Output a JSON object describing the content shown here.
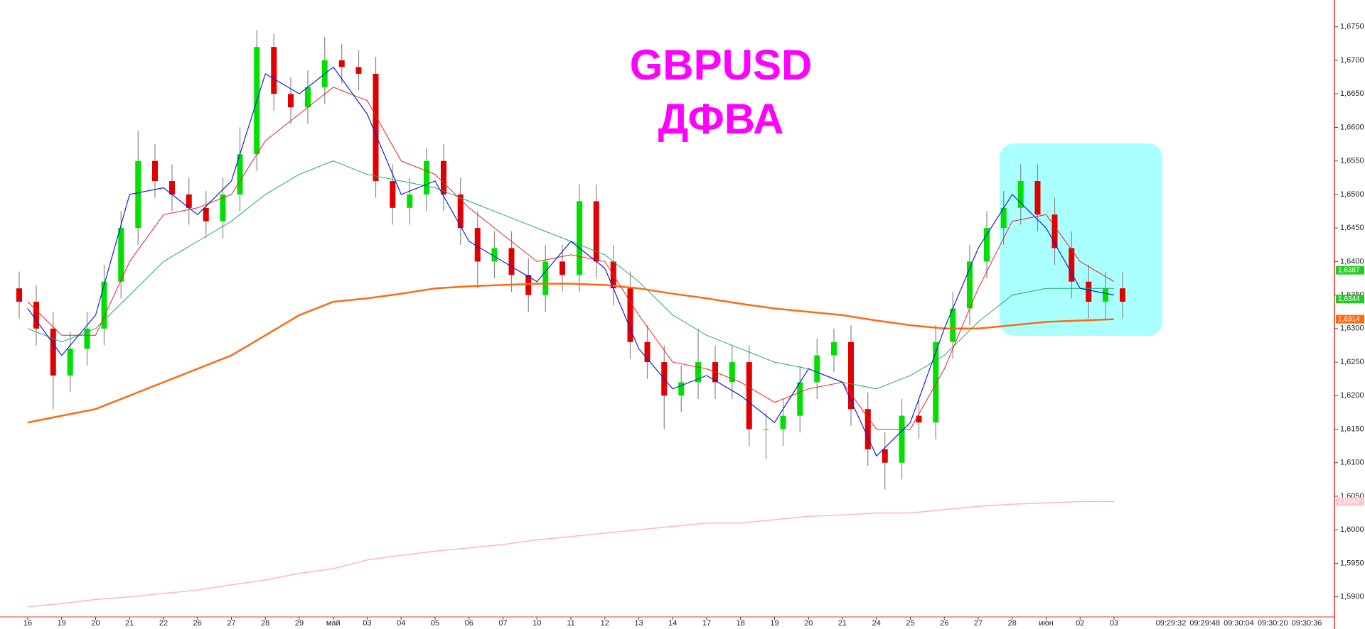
{
  "chart_data": {
    "type": "candlestick",
    "title": "GBPUSD",
    "subtitle": "ДФВА",
    "categories": [
      "16",
      "19",
      "20",
      "21",
      "22",
      "26",
      "27",
      "28",
      "29",
      "май",
      "03",
      "04",
      "05",
      "06",
      "07",
      "10",
      "11",
      "12",
      "13",
      "14",
      "17",
      "18",
      "19",
      "20",
      "21",
      "24",
      "25",
      "26",
      "27",
      "28",
      "июн",
      "02",
      "03"
    ],
    "time_labels": [
      "09:29:32",
      "09:29:48",
      "09:30:04",
      "09:30:20",
      "09:30:36"
    ],
    "open": [
      1.636,
      1.634,
      1.63,
      1.623,
      1.627,
      1.63,
      1.637,
      1.645,
      1.655,
      1.652,
      1.65,
      1.648,
      1.646,
      1.65,
      1.656,
      1.672,
      1.665,
      1.663,
      1.666,
      1.67,
      1.669,
      1.668,
      1.652,
      1.648,
      1.65,
      1.655,
      1.65,
      1.645,
      1.64,
      1.642,
      1.638,
      1.635,
      1.64,
      1.638,
      1.649,
      1.64,
      1.636,
      1.628,
      1.625,
      1.62,
      1.622,
      1.625,
      1.622,
      1.625,
      1.615,
      1.615,
      1.617,
      1.622,
      1.626,
      1.628,
      1.618,
      1.612,
      1.61,
      1.617,
      1.616,
      1.628,
      1.633,
      1.64,
      1.645,
      1.648,
      1.652,
      1.647,
      1.642,
      1.637,
      1.634,
      1.636
    ],
    "high": [
      1.6385,
      1.6365,
      1.6325,
      1.6295,
      1.6325,
      1.6395,
      1.6475,
      1.6595,
      1.6575,
      1.6545,
      1.6525,
      1.6505,
      1.6525,
      1.66,
      1.6745,
      1.674,
      1.6675,
      1.6685,
      1.6735,
      1.6725,
      1.6715,
      1.6705,
      1.6545,
      1.6525,
      1.657,
      1.6575,
      1.6525,
      1.6475,
      1.6445,
      1.6445,
      1.6405,
      1.6425,
      1.6425,
      1.6515,
      1.6515,
      1.6425,
      1.6385,
      1.6305,
      1.6275,
      1.6245,
      1.63,
      1.6275,
      1.6275,
      1.6275,
      1.6175,
      1.6195,
      1.6245,
      1.6285,
      1.63,
      1.6305,
      1.6205,
      1.6145,
      1.6195,
      1.6195,
      1.6305,
      1.6355,
      1.6425,
      1.6475,
      1.6505,
      1.6545,
      1.6545,
      1.6495,
      1.6445,
      1.6395,
      1.6385,
      1.6385
    ],
    "low": [
      1.6315,
      1.6275,
      1.618,
      1.6205,
      1.6245,
      1.6275,
      1.6345,
      1.6425,
      1.6495,
      1.6475,
      1.6455,
      1.6435,
      1.6435,
      1.6475,
      1.6535,
      1.6625,
      1.6605,
      1.6605,
      1.6635,
      1.6665,
      1.6655,
      1.6495,
      1.6455,
      1.6455,
      1.6475,
      1.6475,
      1.6425,
      1.636,
      1.6375,
      1.6355,
      1.6325,
      1.6325,
      1.6355,
      1.6355,
      1.6375,
      1.6335,
      1.6255,
      1.6225,
      1.615,
      1.6175,
      1.6195,
      1.6195,
      1.6195,
      1.6125,
      1.6105,
      1.6125,
      1.6145,
      1.6195,
      1.6235,
      1.6155,
      1.6095,
      1.606,
      1.6075,
      1.6135,
      1.6135,
      1.6255,
      1.6305,
      1.6375,
      1.6425,
      1.6455,
      1.6445,
      1.6395,
      1.6345,
      1.6315,
      1.6315,
      1.6315
    ],
    "close": [
      1.634,
      1.63,
      1.623,
      1.627,
      1.63,
      1.637,
      1.645,
      1.655,
      1.652,
      1.65,
      1.648,
      1.646,
      1.65,
      1.656,
      1.672,
      1.665,
      1.663,
      1.666,
      1.67,
      1.669,
      1.668,
      1.652,
      1.648,
      1.65,
      1.655,
      1.65,
      1.645,
      1.64,
      1.642,
      1.638,
      1.635,
      1.64,
      1.638,
      1.649,
      1.64,
      1.636,
      1.628,
      1.625,
      1.62,
      1.622,
      1.625,
      1.622,
      1.625,
      1.615,
      1.615,
      1.617,
      1.622,
      1.626,
      1.628,
      1.618,
      1.612,
      1.61,
      1.617,
      1.616,
      1.628,
      1.633,
      1.64,
      1.645,
      1.648,
      1.652,
      1.647,
      1.642,
      1.637,
      1.634,
      1.636,
      1.634
    ],
    "up_color": "#00e000",
    "down_color": "#e00000",
    "ma_lines": [
      {
        "color": "#ffb6c1",
        "width": 1.5,
        "values": [
          1.5885,
          1.589,
          1.5896,
          1.59,
          1.5905,
          1.591,
          1.5918,
          1.5925,
          1.5935,
          1.5942,
          1.5955,
          1.5962,
          1.5968,
          1.5973,
          1.5978,
          1.5985,
          1.599,
          1.5995,
          1.6,
          1.6005,
          1.601,
          1.601,
          1.6015,
          1.602,
          1.6022,
          1.6025,
          1.6025,
          1.603,
          1.6035,
          1.6038,
          1.604,
          1.6042,
          1.6042
        ]
      },
      {
        "color": "#ff6a10",
        "width": 2.5,
        "values": [
          1.616,
          1.617,
          1.618,
          1.62,
          1.622,
          1.624,
          1.626,
          1.629,
          1.632,
          1.634,
          1.6345,
          1.6352,
          1.636,
          1.6363,
          1.6365,
          1.6367,
          1.6367,
          1.6365,
          1.636,
          1.6352,
          1.6345,
          1.6337,
          1.633,
          1.6325,
          1.632,
          1.6312,
          1.6305,
          1.63,
          1.63,
          1.6305,
          1.631,
          1.6312,
          1.6314
        ]
      },
      {
        "color": "#22aa66",
        "width": 1,
        "values": [
          1.63,
          1.628,
          1.63,
          1.635,
          1.64,
          1.643,
          1.646,
          1.65,
          1.653,
          1.655,
          1.653,
          1.652,
          1.651,
          1.649,
          1.647,
          1.645,
          1.643,
          1.641,
          1.637,
          1.632,
          1.629,
          1.627,
          1.625,
          1.624,
          1.622,
          1.621,
          1.623,
          1.626,
          1.631,
          1.635,
          1.636,
          1.636,
          1.636
        ]
      },
      {
        "color": "#ee2020",
        "width": 1,
        "values": [
          1.634,
          1.629,
          1.629,
          1.64,
          1.647,
          1.648,
          1.65,
          1.658,
          1.662,
          1.666,
          1.664,
          1.655,
          1.653,
          1.648,
          1.644,
          1.64,
          1.641,
          1.64,
          1.632,
          1.625,
          1.624,
          1.622,
          1.619,
          1.621,
          1.622,
          1.615,
          1.615,
          1.624,
          1.636,
          1.646,
          1.647,
          1.64,
          1.637
        ]
      },
      {
        "color": "#1020e0",
        "width": 1.2,
        "values": [
          1.633,
          1.626,
          1.632,
          1.65,
          1.651,
          1.647,
          1.652,
          1.668,
          1.665,
          1.669,
          1.662,
          1.65,
          1.652,
          1.643,
          1.64,
          1.637,
          1.643,
          1.639,
          1.627,
          1.621,
          1.623,
          1.62,
          1.616,
          1.624,
          1.622,
          1.611,
          1.616,
          1.63,
          1.642,
          1.65,
          1.645,
          1.636,
          1.635
        ]
      }
    ],
    "price_tags": [
      {
        "value": 1.6344,
        "label": "1,6344",
        "color": "#22cc22"
      },
      {
        "value": 1.6387,
        "label": "1,6387",
        "color": "#22cc22"
      },
      {
        "value": 1.6314,
        "label": "1,6314",
        "color": "#ff6a10"
      },
      {
        "value": 1.6042,
        "label": "1,6042",
        "color": "#ffc8d0"
      }
    ],
    "ylim": [
      1.587,
      1.679
    ],
    "yticks": [
      {
        "value": 1.59,
        "label": "1,5900"
      },
      {
        "value": 1.595,
        "label": "1,5950"
      },
      {
        "value": 1.6,
        "label": "1,6000"
      },
      {
        "value": 1.605,
        "label": "1,6050"
      },
      {
        "value": 1.61,
        "label": "1,6100"
      },
      {
        "value": 1.615,
        "label": "1,6150"
      },
      {
        "value": 1.62,
        "label": "1,6200"
      },
      {
        "value": 1.625,
        "label": "1,6250"
      },
      {
        "value": 1.63,
        "label": "1,6300"
      },
      {
        "value": 1.635,
        "label": "1,6350"
      },
      {
        "value": 1.64,
        "label": "1,6400"
      },
      {
        "value": 1.645,
        "label": "1,6450"
      },
      {
        "value": 1.65,
        "label": "1,6500"
      },
      {
        "value": 1.655,
        "label": "1,6550"
      },
      {
        "value": 1.66,
        "label": "1,6600"
      },
      {
        "value": 1.665,
        "label": "1,6650"
      },
      {
        "value": 1.67,
        "label": "1,6700"
      },
      {
        "value": 1.675,
        "label": "1,6750"
      }
    ],
    "title_color": "#ff00ff",
    "highlight_color": "#aaffff",
    "axis_color": "#e03030"
  }
}
